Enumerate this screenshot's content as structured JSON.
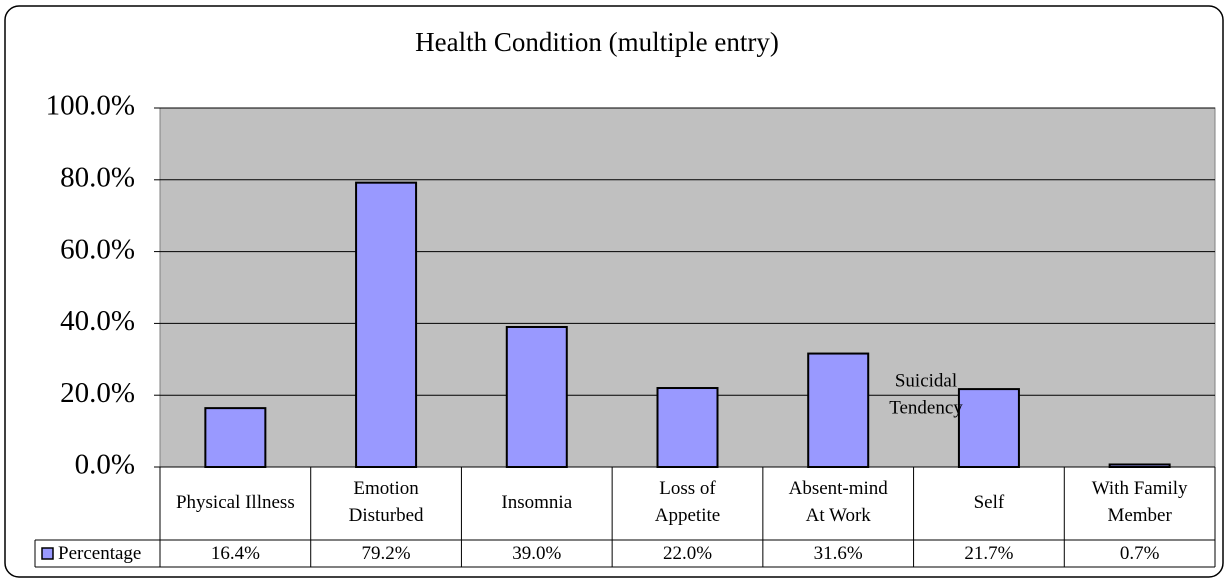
{
  "chart_data": {
    "type": "bar",
    "title": "Health Condition (multiple entry)",
    "categories": [
      "Physical Illness",
      "Emotion\nDisturbed",
      "Insomnia",
      "Loss of\nAppetite",
      "Absent-mind\nAt Work",
      "Self",
      "With Family\nMember"
    ],
    "series": [
      {
        "name": "Percentage",
        "color": "#9999ff",
        "values": [
          16.4,
          79.2,
          39.0,
          22.0,
          31.6,
          21.7,
          0.7
        ],
        "value_labels": [
          "16.4%",
          "79.2%",
          "39.0%",
          "22.0%",
          "31.6%",
          "21.7%",
          "0.7%"
        ]
      }
    ],
    "annotation": "Suicidal\nTendency",
    "ylim": [
      0,
      100
    ],
    "yticks": [
      {
        "value": 0,
        "label": "0.0%"
      },
      {
        "value": 20,
        "label": "20.0%"
      },
      {
        "value": 40,
        "label": "40.0%"
      },
      {
        "value": 60,
        "label": "60.0%"
      },
      {
        "value": 80,
        "label": "80.0%"
      },
      {
        "value": 100,
        "label": "100.0%"
      }
    ],
    "grid": true,
    "plot_background": "#c0c0c0"
  }
}
